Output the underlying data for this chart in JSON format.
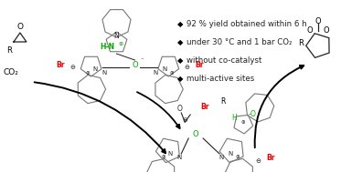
{
  "bg_color": "#ffffff",
  "bullet_points": [
    "92 % yield obtained within 6 h",
    "under 30 °C and 1 bar CO₂",
    "without co-catalyst",
    "multi-active sites"
  ],
  "red_color": "#ee0000",
  "green_color": "#00aa00",
  "black_color": "#000000",
  "ring_color": "#777777",
  "text_color": "#222222",
  "diamond": "◆"
}
